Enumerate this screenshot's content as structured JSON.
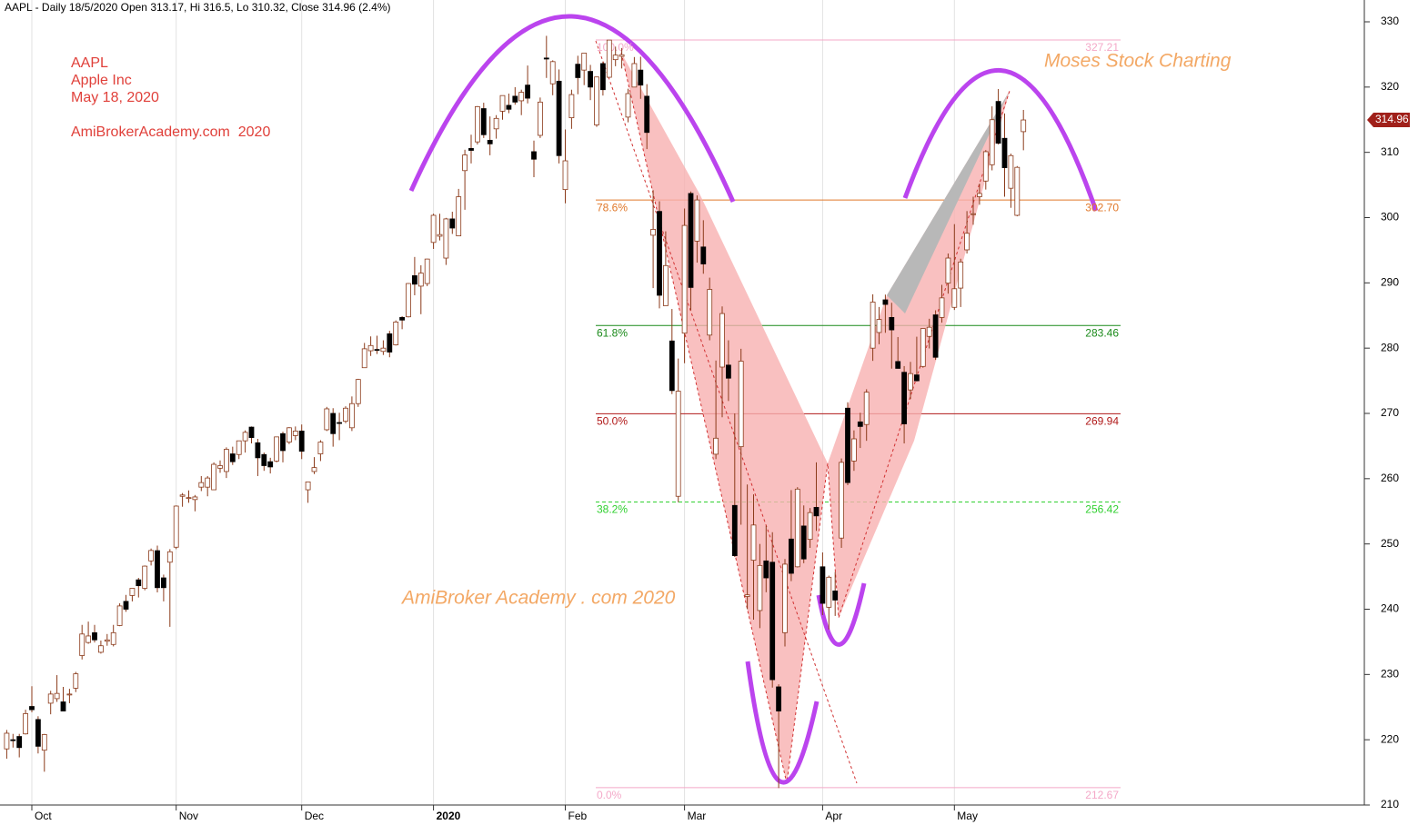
{
  "header": {
    "title": "AAPL - Daily 18/5/2020 Open 313.17, Hi 316.5, Lo 310.32, Close 314.96 (2.4%)"
  },
  "notes": {
    "ticker": "AAPL",
    "company": "Apple Inc",
    "date": "May 18, 2020",
    "site": "AmiBrokerAcademy.com  2020",
    "watermark": "AmiBroker Academy . com 2020",
    "brand": "Moses Stock Charting"
  },
  "chart_data": {
    "type": "candlestick",
    "up_color": "#ffffff",
    "down_color": "#000000",
    "wick_color": "#8b3a1a",
    "ylim": [
      210,
      330
    ],
    "yticks": [
      210,
      220,
      230,
      240,
      250,
      260,
      270,
      280,
      290,
      300,
      310,
      320,
      330
    ],
    "categories": [
      null,
      null,
      null,
      null,
      "Oct",
      null,
      null,
      null,
      null,
      null,
      null,
      null,
      null,
      null,
      null,
      null,
      null,
      null,
      null,
      null,
      null,
      null,
      null,
      null,
      null,
      null,
      null,
      "Nov",
      null,
      null,
      null,
      null,
      null,
      null,
      null,
      null,
      null,
      null,
      null,
      null,
      null,
      null,
      null,
      null,
      null,
      null,
      null,
      "Dec",
      null,
      null,
      null,
      null,
      null,
      null,
      null,
      null,
      null,
      null,
      null,
      null,
      null,
      null,
      null,
      null,
      null,
      null,
      null,
      null,
      "2020",
      null,
      null,
      null,
      null,
      null,
      null,
      null,
      null,
      null,
      null,
      null,
      null,
      null,
      null,
      null,
      null,
      null,
      null,
      null,
      null,
      "Feb",
      null,
      null,
      null,
      null,
      null,
      null,
      null,
      null,
      null,
      null,
      null,
      null,
      null,
      null,
      null,
      null,
      null,
      null,
      "Mar",
      null,
      null,
      null,
      null,
      null,
      null,
      null,
      null,
      null,
      null,
      null,
      null,
      null,
      null,
      null,
      null,
      null,
      null,
      null,
      null,
      null,
      "Apr",
      null,
      null,
      null,
      null,
      null,
      null,
      null,
      null,
      null,
      null,
      null,
      null,
      null,
      null,
      null,
      null,
      null,
      null,
      null,
      null,
      "May",
      null,
      null,
      null,
      null,
      null,
      null,
      null,
      null,
      null,
      null,
      null
    ],
    "ohlc": [
      [
        218.6,
        221.5,
        217.1,
        221.0
      ],
      [
        220.0,
        220.9,
        218.8,
        219.9
      ],
      [
        220.5,
        220.9,
        217.3,
        218.8
      ],
      [
        220.9,
        224.6,
        220.8,
        224.0
      ],
      [
        225.1,
        228.2,
        224.2,
        224.6
      ],
      [
        223.1,
        223.6,
        217.9,
        219.0
      ],
      [
        218.4,
        220.9,
        215.1,
        220.8
      ],
      [
        225.6,
        227.5,
        223.9,
        227.0
      ],
      [
        226.3,
        229.9,
        225.8,
        227.1
      ],
      [
        225.8,
        228.1,
        224.4,
        224.4
      ],
      [
        227.0,
        227.8,
        225.6,
        227.0
      ],
      [
        227.9,
        230.4,
        227.3,
        230.1
      ],
      [
        232.9,
        237.6,
        232.3,
        236.2
      ],
      [
        234.9,
        238.1,
        234.7,
        235.9
      ],
      [
        236.4,
        237.6,
        234.9,
        235.3
      ],
      [
        233.4,
        235.2,
        233.2,
        234.4
      ],
      [
        235.1,
        236.2,
        234.4,
        235.3
      ],
      [
        234.6,
        237.6,
        234.3,
        236.4
      ],
      [
        237.5,
        240.9,
        237.4,
        240.5
      ],
      [
        241.2,
        242.2,
        239.6,
        240.0
      ],
      [
        242.1,
        243.2,
        241.2,
        243.2
      ],
      [
        244.5,
        244.8,
        241.8,
        243.6
      ],
      [
        243.2,
        246.7,
        242.9,
        246.6
      ],
      [
        247.4,
        249.3,
        246.7,
        249.0
      ],
      [
        248.97,
        249.75,
        242.57,
        243.3
      ],
      [
        244.8,
        245.3,
        241.2,
        243.3
      ],
      [
        247.2,
        249.2,
        237.3,
        248.8
      ],
      [
        249.5,
        255.9,
        249.2,
        255.8
      ],
      [
        257.3,
        257.8,
        255.7,
        257.5
      ],
      [
        257.1,
        258.2,
        256.3,
        257.1
      ],
      [
        256.8,
        257.5,
        255.0,
        257.2
      ],
      [
        258.7,
        260.4,
        258.1,
        259.4
      ],
      [
        258.7,
        260.4,
        257.3,
        260.1
      ],
      [
        258.3,
        262.5,
        258.3,
        262.2
      ],
      [
        261.6,
        262.8,
        260.9,
        262.0
      ],
      [
        261.1,
        264.8,
        260.1,
        264.5
      ],
      [
        263.8,
        264.9,
        262.1,
        262.6
      ],
      [
        263.7,
        265.8,
        263.0,
        265.8
      ],
      [
        265.8,
        267.4,
        264.0,
        267.1
      ],
      [
        267.9,
        268.0,
        265.4,
        266.3
      ],
      [
        265.5,
        266.1,
        260.4,
        263.2
      ],
      [
        263.7,
        264.0,
        261.2,
        262.0
      ],
      [
        262.6,
        263.2,
        260.8,
        261.8
      ],
      [
        262.7,
        266.4,
        262.5,
        266.4
      ],
      [
        266.9,
        267.2,
        262.5,
        264.3
      ],
      [
        265.6,
        267.9,
        265.3,
        267.8
      ],
      [
        266.6,
        268.0,
        265.9,
        267.3
      ],
      [
        267.3,
        268.3,
        263.0,
        264.2
      ],
      [
        258.3,
        259.5,
        256.3,
        259.5
      ],
      [
        261.1,
        263.3,
        260.7,
        261.7
      ],
      [
        263.8,
        265.9,
        262.7,
        265.6
      ],
      [
        267.5,
        271.0,
        267.3,
        270.7
      ],
      [
        270.0,
        270.8,
        264.9,
        266.9
      ],
      [
        268.6,
        270.1,
        265.9,
        268.5
      ],
      [
        268.8,
        271.1,
        268.5,
        270.8
      ],
      [
        267.8,
        272.6,
        267.3,
        271.5
      ],
      [
        271.5,
        275.3,
        271.0,
        275.2
      ],
      [
        277.0,
        280.8,
        276.98,
        279.9
      ],
      [
        279.6,
        281.8,
        278.8,
        280.4
      ],
      [
        279.8,
        281.9,
        279.1,
        279.7
      ],
      [
        279.5,
        281.2,
        278.95,
        280.0
      ],
      [
        282.2,
        282.65,
        278.6,
        279.4
      ],
      [
        280.5,
        284.25,
        280.4,
        284.0
      ],
      [
        284.7,
        284.9,
        282.9,
        284.3
      ],
      [
        284.8,
        289.98,
        284.7,
        289.9
      ],
      [
        291.1,
        293.97,
        288.1,
        289.8
      ],
      [
        289.5,
        292.7,
        285.2,
        291.5
      ],
      [
        289.9,
        293.7,
        289.5,
        293.65
      ],
      [
        296.2,
        300.6,
        295.2,
        300.35
      ],
      [
        297.15,
        300.6,
        296.5,
        297.4
      ],
      [
        293.8,
        299.96,
        292.75,
        299.8
      ],
      [
        299.8,
        300.9,
        297.5,
        298.4
      ],
      [
        297.2,
        304.4,
        297.2,
        303.2
      ],
      [
        307.2,
        310.4,
        301.2,
        309.6
      ],
      [
        310.6,
        312.7,
        308.3,
        310.3
      ],
      [
        311.6,
        317.1,
        311.2,
        317.0
      ],
      [
        316.7,
        317.6,
        312.2,
        312.7
      ],
      [
        311.85,
        315.5,
        309.55,
        311.3
      ],
      [
        313.6,
        315.7,
        312.1,
        315.2
      ],
      [
        316.3,
        318.7,
        315.0,
        318.7
      ],
      [
        317.2,
        319.0,
        316.0,
        316.6
      ],
      [
        318.6,
        319.99,
        317.3,
        317.7
      ],
      [
        317.9,
        319.6,
        315.7,
        319.2
      ],
      [
        320.3,
        323.3,
        317.5,
        318.3
      ],
      [
        310.1,
        311.8,
        306.2,
        308.95
      ],
      [
        312.6,
        318.4,
        312.2,
        317.7
      ],
      [
        324.45,
        327.85,
        321.4,
        324.3
      ],
      [
        320.5,
        324.1,
        318.75,
        323.9
      ],
      [
        320.9,
        322.7,
        308.3,
        309.5
      ],
      [
        304.3,
        313.5,
        302.2,
        308.7
      ],
      [
        315.3,
        319.6,
        313.6,
        318.85
      ],
      [
        323.5,
        324.8,
        318.9,
        321.45
      ],
      [
        322.6,
        325.2,
        320.3,
        325.2
      ],
      [
        322.4,
        323.4,
        318.0,
        320.0
      ],
      [
        314.2,
        321.6,
        313.9,
        321.55
      ],
      [
        323.6,
        323.9,
        318.7,
        319.6
      ],
      [
        321.5,
        327.2,
        321.5,
        327.2
      ],
      [
        324.2,
        326.2,
        323.2,
        324.9
      ],
      [
        324.7,
        325.98,
        322.85,
        324.95
      ],
      [
        315.4,
        319.75,
        314.6,
        319.0
      ],
      [
        320.0,
        324.6,
        320.0,
        323.6
      ],
      [
        322.6,
        324.65,
        318.2,
        320.3
      ],
      [
        318.6,
        320.45,
        310.5,
        313.05
      ],
      [
        297.3,
        304.2,
        289.2,
        298.2
      ],
      [
        300.95,
        302.5,
        286.1,
        288.1
      ],
      [
        286.5,
        297.9,
        286.5,
        292.65
      ],
      [
        281.1,
        286.0,
        272.96,
        273.5
      ],
      [
        257.3,
        278.4,
        256.4,
        273.4
      ],
      [
        282.3,
        301.4,
        277.7,
        298.8
      ],
      [
        303.7,
        304.0,
        285.8,
        289.3
      ],
      [
        296.4,
        303.4,
        293.1,
        302.7
      ],
      [
        295.5,
        299.6,
        291.4,
        292.9
      ],
      [
        282.0,
        290.8,
        281.2,
        289.0
      ],
      [
        263.75,
        278.1,
        263.0,
        266.2
      ],
      [
        277.1,
        286.4,
        269.4,
        285.3
      ],
      [
        277.4,
        281.2,
        271.9,
        275.4
      ],
      [
        255.9,
        270.0,
        248.0,
        248.2
      ],
      [
        264.9,
        279.9,
        252.95,
        278.0
      ],
      [
        241.95,
        259.1,
        240.0,
        242.2
      ],
      [
        247.5,
        257.6,
        238.4,
        252.9
      ],
      [
        239.8,
        250.0,
        237.1,
        246.7
      ],
      [
        247.4,
        252.8,
        242.6,
        244.8
      ],
      [
        247.2,
        251.8,
        228.0,
        229.2
      ],
      [
        228.1,
        228.5,
        212.6,
        224.4
      ],
      [
        236.4,
        247.7,
        234.3,
        246.9
      ],
      [
        250.75,
        258.25,
        244.3,
        245.5
      ],
      [
        246.5,
        258.7,
        246.4,
        258.4
      ],
      [
        252.75,
        255.9,
        247.05,
        247.7
      ],
      [
        250.7,
        255.5,
        249.4,
        254.8
      ],
      [
        255.6,
        262.5,
        252.0,
        254.3
      ],
      [
        246.5,
        248.7,
        239.1,
        240.9
      ],
      [
        240.3,
        245.15,
        236.9,
        244.9
      ],
      [
        242.8,
        245.7,
        238.97,
        241.4
      ],
      [
        250.9,
        263.1,
        249.4,
        262.5
      ],
      [
        270.8,
        271.7,
        259.0,
        259.4
      ],
      [
        262.7,
        267.4,
        261.2,
        266.1
      ],
      [
        268.7,
        270.1,
        264.7,
        268.0
      ],
      [
        268.3,
        273.7,
        265.8,
        273.25
      ],
      [
        280.0,
        288.25,
        278.05,
        287.05
      ],
      [
        282.4,
        286.3,
        280.6,
        284.4
      ],
      [
        287.4,
        288.2,
        282.35,
        286.7
      ],
      [
        284.7,
        286.95,
        276.86,
        282.8
      ],
      [
        277.95,
        281.7,
        276.85,
        276.9
      ],
      [
        276.3,
        277.25,
        265.4,
        268.4
      ],
      [
        273.6,
        277.9,
        272.2,
        276.1
      ],
      [
        275.9,
        281.75,
        274.9,
        275.0
      ],
      [
        277.2,
        283.0,
        277.0,
        283.0
      ],
      [
        281.8,
        284.5,
        279.95,
        283.2
      ],
      [
        285.1,
        285.8,
        278.2,
        278.6
      ],
      [
        284.7,
        289.7,
        283.9,
        287.7
      ],
      [
        289.96,
        294.5,
        288.35,
        293.8
      ],
      [
        286.25,
        299.0,
        285.85,
        289.1
      ],
      [
        289.2,
        293.7,
        286.3,
        293.2
      ],
      [
        295.06,
        301.0,
        294.5,
        297.6
      ],
      [
        300.5,
        303.2,
        298.9,
        300.6
      ],
      [
        303.2,
        305.2,
        301.97,
        303.7
      ],
      [
        305.6,
        310.35,
        304.3,
        310.1
      ],
      [
        308.1,
        317.05,
        307.24,
        315.0
      ],
      [
        317.8,
        319.7,
        311.2,
        311.4
      ],
      [
        312.15,
        315.95,
        303.2,
        307.65
      ],
      [
        304.5,
        309.8,
        301.5,
        309.5
      ],
      [
        300.35,
        307.9,
        300.2,
        307.7
      ],
      [
        313.17,
        316.5,
        310.32,
        314.96
      ]
    ],
    "last_price_color": "#a0201a",
    "fib_levels": [
      {
        "pct": "100.0%",
        "value": 327.21,
        "value_label": "327.21",
        "color": "#f4a8c8",
        "dashed": false
      },
      {
        "pct": "78.6%",
        "value": 302.7,
        "value_label": "302.70",
        "color": "#e0782a",
        "dashed": false
      },
      {
        "pct": "61.8%",
        "value": 283.46,
        "value_label": "283.46",
        "color": "#1a8a1a",
        "dashed": false
      },
      {
        "pct": "50.0%",
        "value": 269.94,
        "value_label": "269.94",
        "color": "#b01818",
        "dashed": false
      },
      {
        "pct": "38.2%",
        "value": 256.42,
        "value_label": "256.42",
        "color": "#30d030",
        "dashed": true
      },
      {
        "pct": "0.0%",
        "value": 212.67,
        "value_label": "212.67",
        "color": "#f4a8c8",
        "dashed": false
      }
    ]
  }
}
